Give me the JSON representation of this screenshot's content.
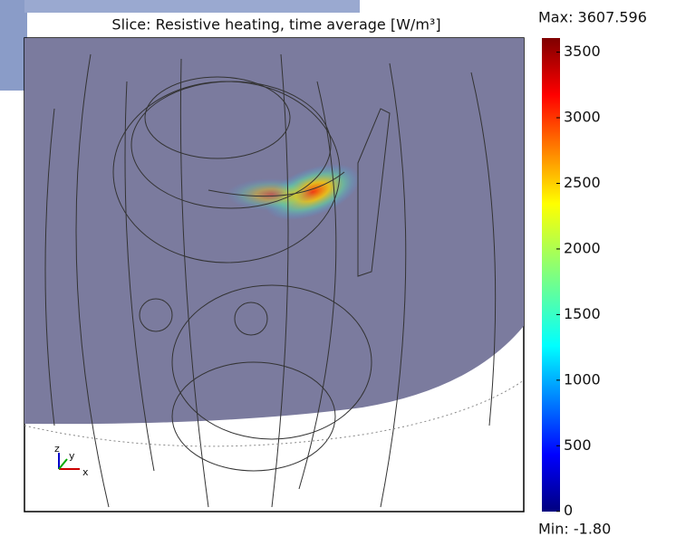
{
  "chart_data": {
    "type": "slice",
    "title": "Slice: Resistive heating, time average [W/m³]",
    "max": {
      "value": 3607.596,
      "label": "Max: 3607.596"
    },
    "min": {
      "value": -1.8,
      "label": "Min: -1.80"
    },
    "cticks": [
      0,
      500,
      1000,
      1500,
      2000,
      2500,
      3000,
      3500
    ],
    "axis_triad": [
      "z",
      "y",
      "x"
    ]
  }
}
